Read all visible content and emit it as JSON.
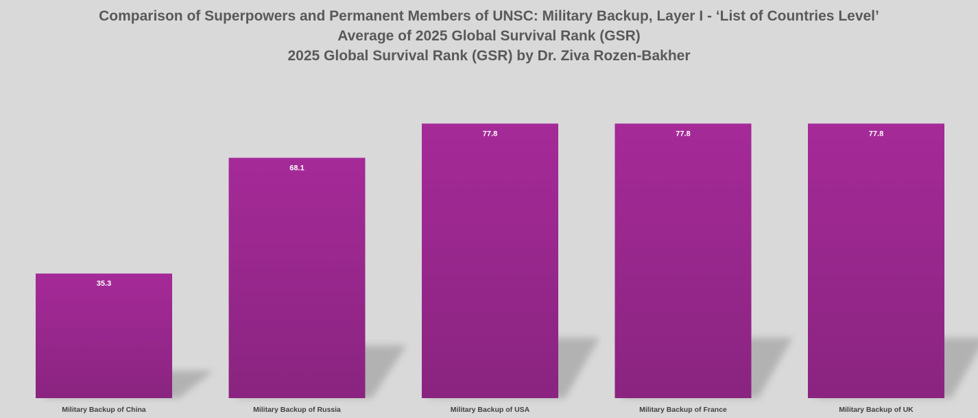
{
  "chart_data": {
    "type": "bar",
    "title_lines": [
      "Comparison of Superpowers and Permanent Members of UNSC: Military Backup, Layer I - ‘List of Countries Level’",
      "Average of 2025 Global Survival Rank (GSR)",
      "2025 Global Survival Rank (GSR) by Dr. Ziva Rozen-Bakher"
    ],
    "categories": [
      "Military Backup of China",
      "Military Backup of Russia",
      "Military Backup of USA",
      "Military Backup of France",
      "Military Backup of UK"
    ],
    "values": [
      35.3,
      68.1,
      77.8,
      77.8,
      77.8
    ],
    "data_labels": [
      "35.3",
      "68.1",
      "77.8",
      "77.8",
      "77.8"
    ],
    "ylim": [
      0,
      100
    ],
    "grid": false,
    "legend": "none",
    "colors": {
      "background": "#d9d9d9",
      "bar_top": "#a52a98",
      "bar_bottom": "#8a2480",
      "title": "#595959",
      "data_label": "#ffffff",
      "category_label": "#404040",
      "shadow": "#a6a6a6"
    }
  }
}
